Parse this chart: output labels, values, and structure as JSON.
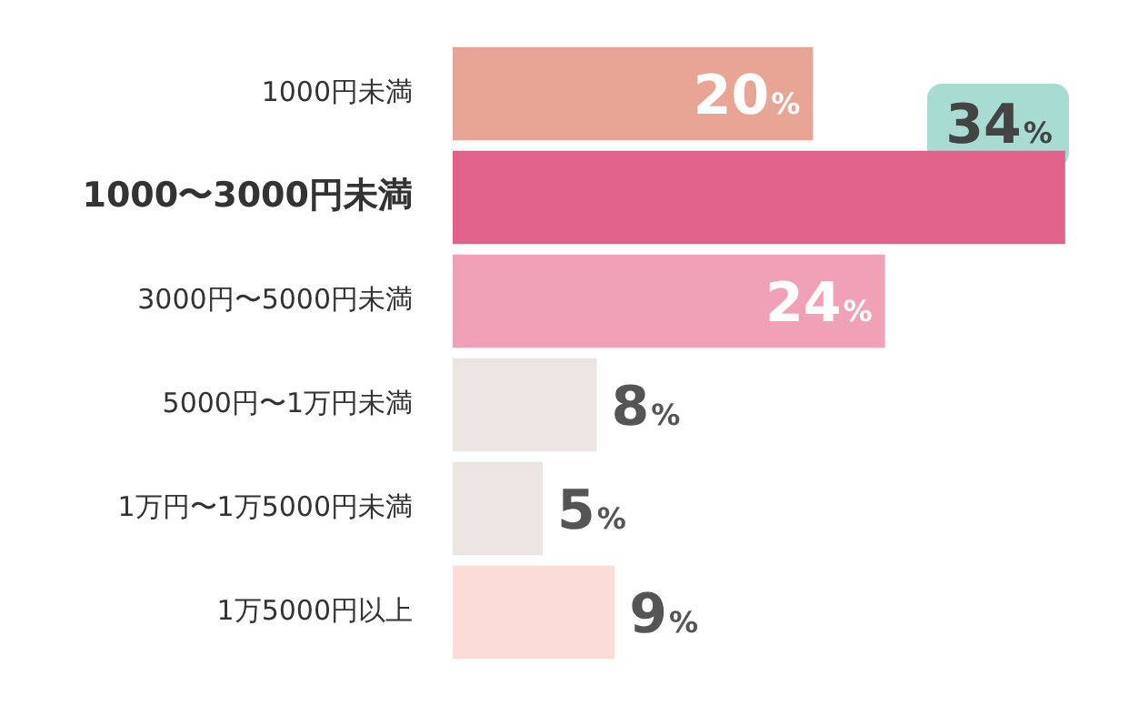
{
  "chart_data": {
    "type": "bar",
    "orientation": "horizontal",
    "categories": [
      "1000円未満",
      "1000〜3000円未満",
      "3000円〜5000円未満",
      "5000円〜1万円未満",
      "1万円〜1万5000円未満",
      "1万5000円以上"
    ],
    "values": [
      20,
      34,
      24,
      8,
      5,
      9
    ],
    "colors": [
      "#e8a595",
      "#e06189",
      "#f0a1b7",
      "#ebe4e1",
      "#ebe4e1",
      "#fbdcd6"
    ],
    "value_labels": [
      "20%",
      "34%",
      "24%",
      "8%",
      "5%",
      "9%"
    ],
    "legend": false
  }
}
